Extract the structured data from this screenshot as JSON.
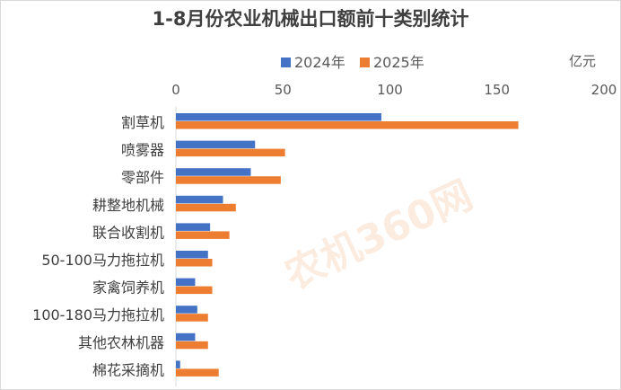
{
  "chart_data": {
    "type": "bar",
    "orientation": "horizontal",
    "title": "1-8月份农业机械出口额前十类别统计",
    "unit": "亿元",
    "categories": [
      "割草机",
      "喷雾器",
      "零部件",
      "耕整地机械",
      "联合收割机",
      "50-100马力拖拉机",
      "家禽饲养机",
      "100-180马力拖拉机",
      "其他农林机器",
      "棉花采摘机"
    ],
    "series": [
      {
        "name": "2024年",
        "color": "#4472c4",
        "values": [
          96,
          37,
          35,
          22,
          16,
          15,
          9,
          10,
          9,
          2
        ]
      },
      {
        "name": "2025年",
        "color": "#ed7d31",
        "values": [
          160,
          51,
          49,
          28,
          25,
          17,
          17,
          15,
          15,
          20
        ]
      }
    ],
    "xlim": [
      0,
      200
    ],
    "xticks": [
      0,
      50,
      100,
      150,
      200
    ],
    "legend_position": "top",
    "grid": false
  },
  "watermark": "农机360网"
}
